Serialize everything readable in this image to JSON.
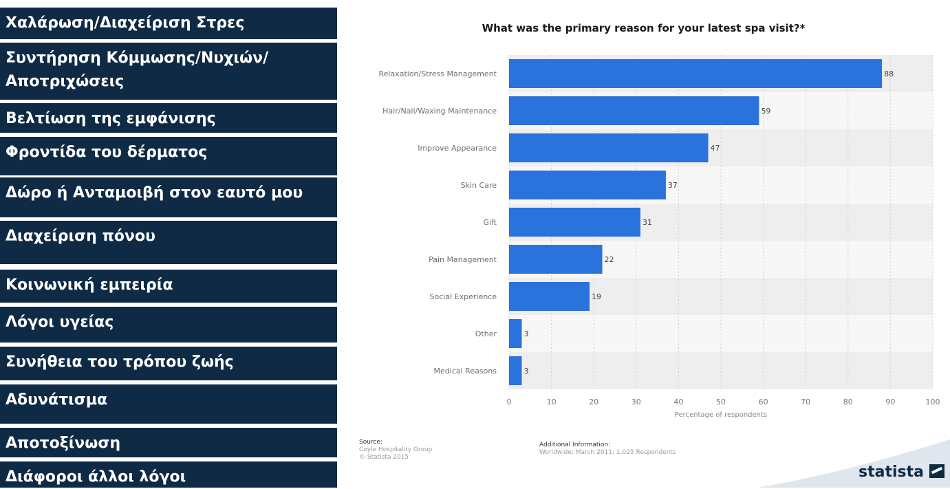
{
  "left_list": [
    "Χαλάρωση/Διαχείριση Στρες",
    "Συντήρηση Κόμμωσης/Νυχιών/ Αποτριχώσεις",
    "Βελτίωση της εμφάνισης",
    "Φροντίδα του δέρματος",
    "Δώρο ή Ανταμοιβή στον εαυτό μου",
    "Διαχείριση πόνου",
    "Κοινωνική εμπειρία",
    "Λόγοι υγείας",
    "Συνήθεια του τρόπου ζωής",
    "Αδυνάτισμα",
    "Αποτοξίνωση",
    "Διάφοροι άλλοι λόγοι"
  ],
  "footer": {
    "source_label": "Source:",
    "source_lines": [
      "Coyle Hospitality Group",
      "© Statista 2015"
    ],
    "info_label": "Additional Information:",
    "info_text": "Worldwide; March 2011; 1,025 Respondents",
    "brand": "statista"
  },
  "colors": {
    "bar": "#2a72dc",
    "list_bg": "#0f2a44"
  },
  "chart_data": {
    "type": "bar",
    "orientation": "horizontal",
    "title": "What was the primary reason for your latest spa visit?*",
    "xlabel": "Percentage of respondents",
    "ylabel": "",
    "categories": [
      "Relaxation/Stress Management",
      "Hair/Nail/Waxing Maintenance",
      "Improve Appearance",
      "Skin Care",
      "Gift",
      "Pain Management",
      "Social Experience",
      "Other",
      "Medical Reasons"
    ],
    "values": [
      88,
      59,
      47,
      37,
      31,
      22,
      19,
      3,
      3
    ],
    "xlim": [
      0,
      100
    ],
    "xticks": [
      0,
      10,
      20,
      30,
      40,
      50,
      60,
      70,
      80,
      90,
      100
    ],
    "grid": true
  }
}
